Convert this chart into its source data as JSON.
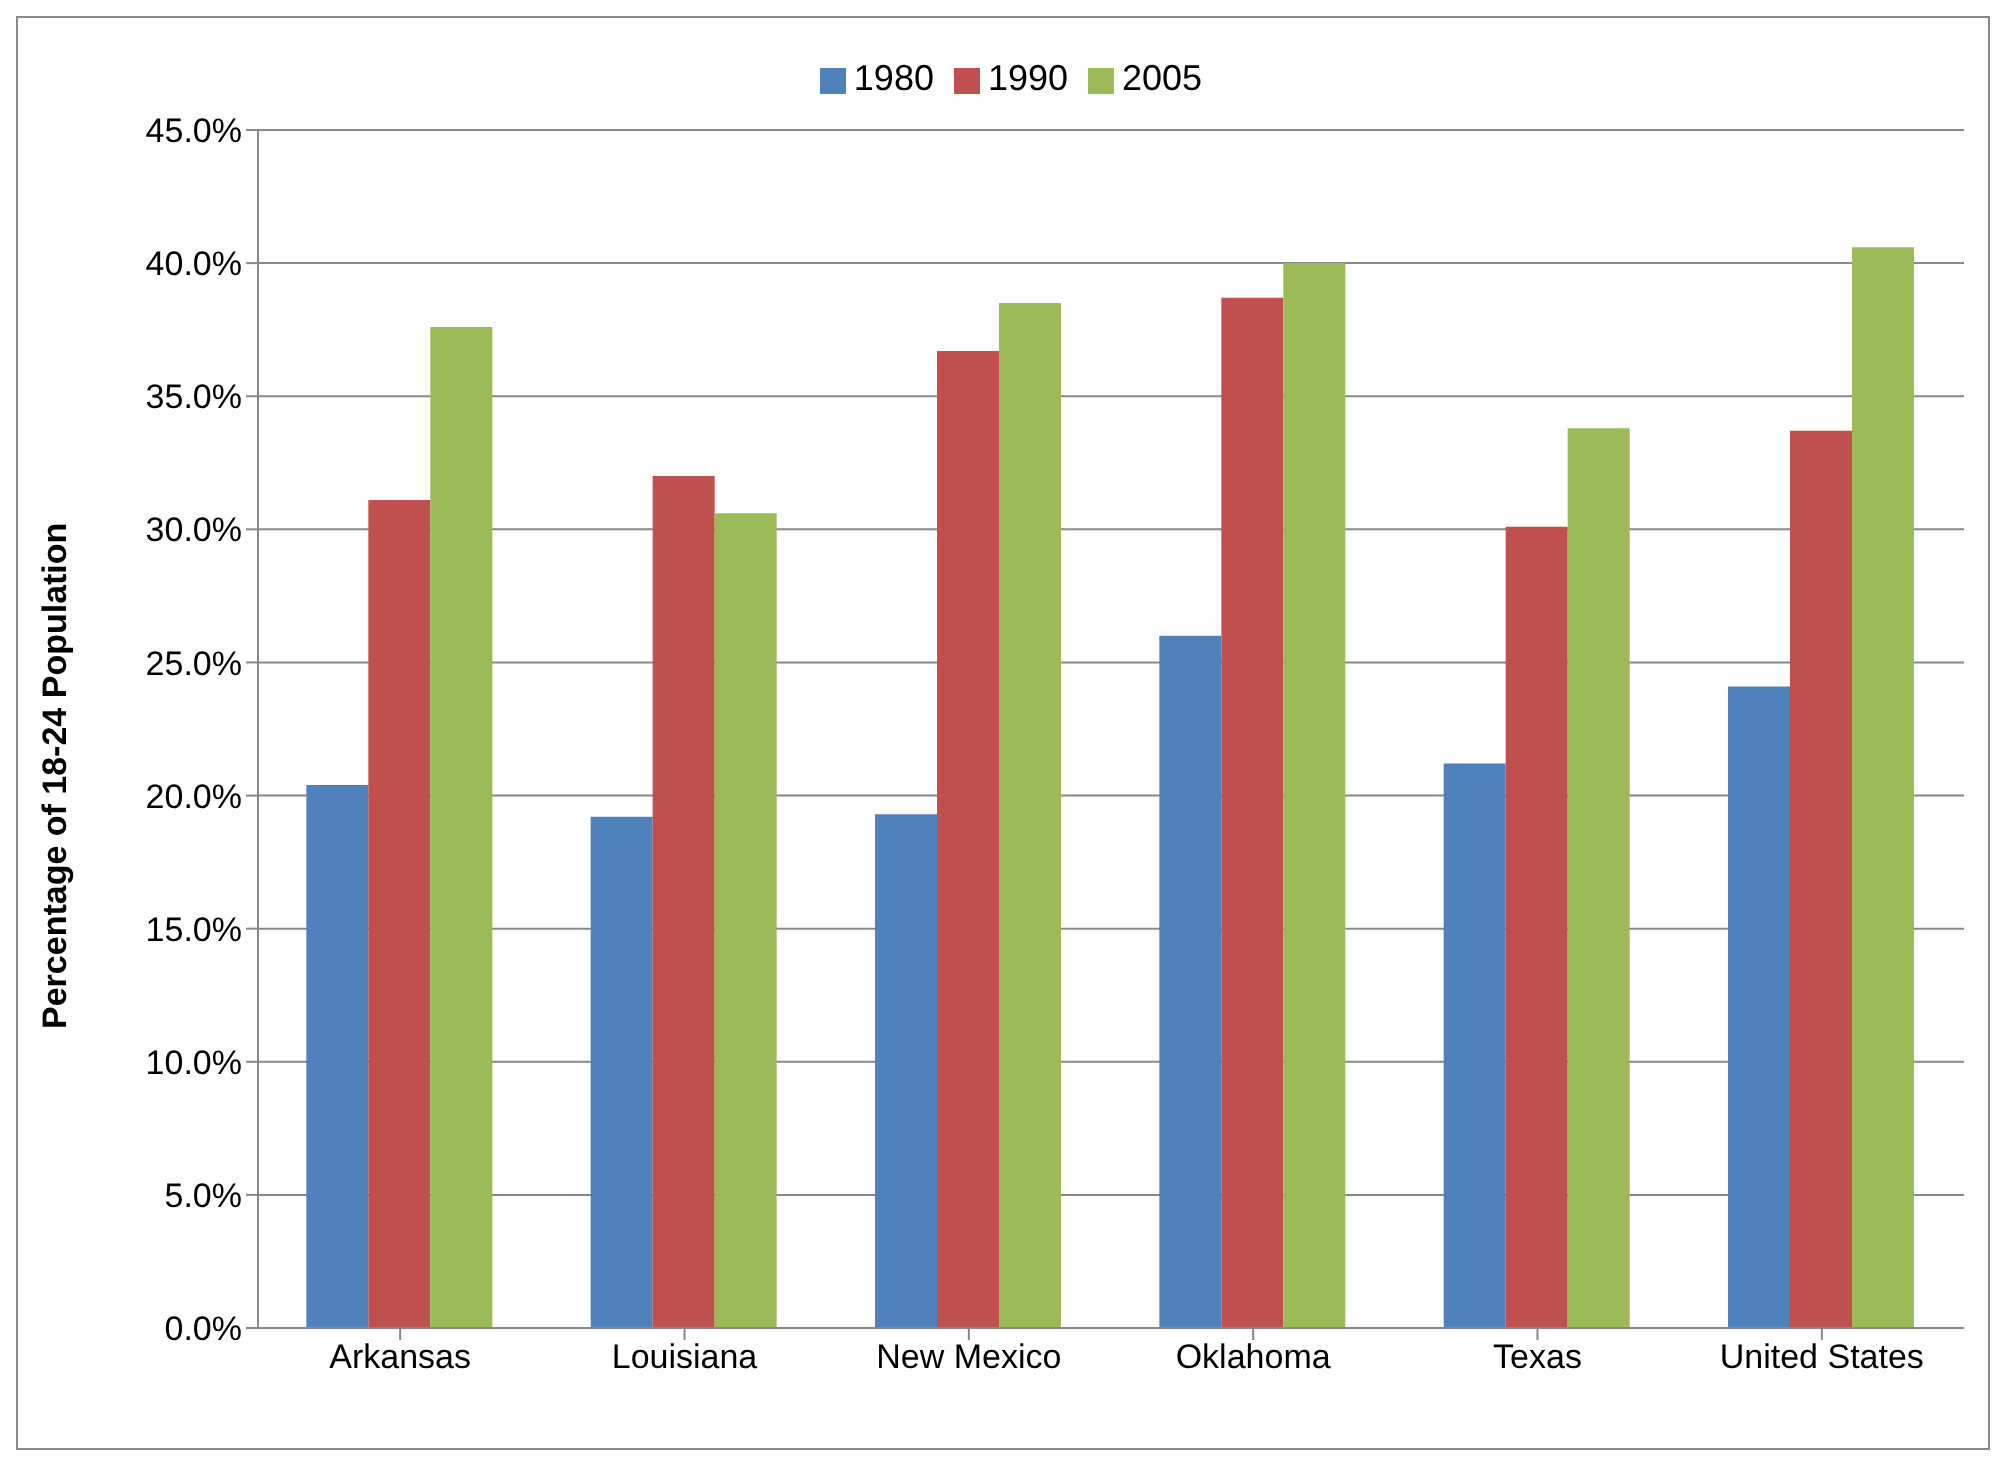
{
  "chart_data": {
    "type": "bar",
    "ylabel": "Percentage of 18-24 Population",
    "categories": [
      "Arkansas",
      "Louisiana",
      "New Mexico",
      "Oklahoma",
      "Texas",
      "United States"
    ],
    "series": [
      {
        "name": "1980",
        "color": "#4f81bd",
        "values": [
          20.4,
          19.2,
          19.3,
          26.0,
          21.2,
          24.1
        ]
      },
      {
        "name": "1990",
        "color": "#c0504d",
        "values": [
          31.1,
          32.0,
          36.7,
          38.7,
          30.1,
          33.7
        ]
      },
      {
        "name": "2005",
        "color": "#9bbb59",
        "values": [
          37.6,
          30.6,
          38.5,
          40.0,
          33.8,
          40.6
        ]
      }
    ],
    "ylim": [
      0,
      45
    ],
    "yticks": [
      {
        "value": 0,
        "label": "0.0%"
      },
      {
        "value": 5,
        "label": "5.0%"
      },
      {
        "value": 10,
        "label": "10.0%"
      },
      {
        "value": 15,
        "label": "15.0%"
      },
      {
        "value": 20,
        "label": "20.0%"
      },
      {
        "value": 25,
        "label": "25.0%"
      },
      {
        "value": 30,
        "label": "30.0%"
      },
      {
        "value": 35,
        "label": "35.0%"
      },
      {
        "value": 40,
        "label": "40.0%"
      },
      {
        "value": 45,
        "label": "45.0%"
      }
    ],
    "grid": "y",
    "legend": "top"
  }
}
